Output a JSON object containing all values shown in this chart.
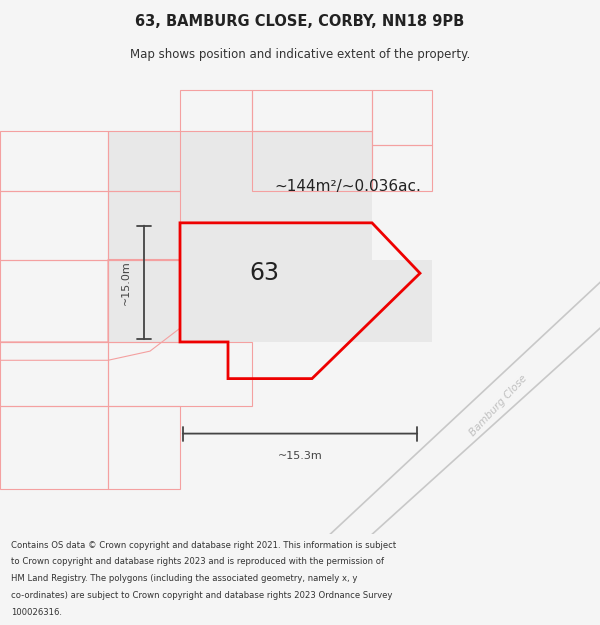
{
  "title": "63, BAMBURG CLOSE, CORBY, NN18 9PB",
  "subtitle": "Map shows position and indicative extent of the property.",
  "area_label": "~144m²/~0.036ac.",
  "number_label": "63",
  "dim_h": "~15.3m",
  "dim_v": "~15.0m",
  "road_label": "Bamburg Close",
  "footer_lines": [
    "Contains OS data © Crown copyright and database right 2021. This information is subject",
    "to Crown copyright and database rights 2023 and is reproduced with the permission of",
    "HM Land Registry. The polygons (including the associated geometry, namely x, y",
    "co-ordinates) are subject to Crown copyright and database rights 2023 Ordnance Survey",
    "100026316."
  ],
  "bg_color": "#f5f5f5",
  "map_bg": "#ffffff",
  "red_color": "#ee0000",
  "pink_color": "#f4a0a0",
  "road_color": "#c8c8c8",
  "dim_color": "#444444",
  "gray_fill": "#e8e8e8",
  "light_gray_fill": "#f0f0f0"
}
